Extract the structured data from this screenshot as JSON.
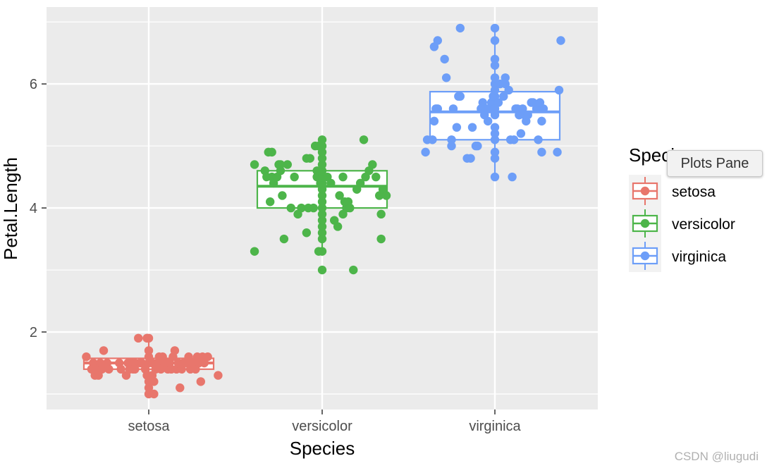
{
  "colors": {
    "panel_bg": "#ebebeb",
    "grid": "#ffffff",
    "tick": "#333333",
    "setosa": "#e8766c",
    "versicolor": "#4db54a",
    "virginica": "#6d9ef8"
  },
  "tooltip": {
    "text": "Plots Pane"
  },
  "watermark": {
    "text": "CSDN @liugudi"
  },
  "chart_data": {
    "type": "boxplot_jitter",
    "title": "",
    "xlabel": "Species",
    "ylabel": "Petal.Length",
    "categories": [
      "setosa",
      "versicolor",
      "virginica"
    ],
    "ylim": [
      0.75,
      7.24
    ],
    "yticks": [
      2,
      4,
      6
    ],
    "ytick_labels": [
      "2",
      "4",
      "6"
    ],
    "grid": true,
    "legend": {
      "title": "Species",
      "position": "right",
      "entries": [
        "setosa",
        "versicolor",
        "virginica"
      ]
    },
    "series": [
      {
        "name": "setosa",
        "box": {
          "q1": 1.4,
          "median": 1.5,
          "q3": 1.575,
          "whisker_low": 1.0,
          "whisker_high": 1.9
        },
        "points": [
          [
            -0.36,
            1.6
          ],
          [
            -0.33,
            1.4
          ],
          [
            -0.32,
            1.5
          ],
          [
            -0.32,
            1.4
          ],
          [
            -0.31,
            1.3
          ],
          [
            -0.32,
            1.5
          ],
          [
            -0.3,
            1.4
          ],
          [
            -0.29,
            1.3
          ],
          [
            -0.29,
            1.4
          ],
          [
            -0.28,
            1.4
          ],
          [
            -0.28,
            1.5
          ],
          [
            -0.27,
            1.4
          ],
          [
            -0.26,
            1.7
          ],
          [
            -0.24,
            1.5
          ],
          [
            -0.23,
            1.4
          ],
          [
            -0.17,
            1.5
          ],
          [
            -0.16,
            1.4
          ],
          [
            -0.13,
            1.3
          ],
          [
            -0.12,
            1.5
          ],
          [
            -0.11,
            1.4
          ],
          [
            -0.1,
            1.5
          ],
          [
            -0.09,
            1.4
          ],
          [
            -0.08,
            1.5
          ],
          [
            -0.08,
            1.4
          ],
          [
            -0.06,
            1.9
          ],
          [
            -0.05,
            1.5
          ],
          [
            -0.04,
            1.5
          ],
          [
            -0.02,
            1.4
          ],
          [
            -0.01,
            1.9
          ],
          [
            -0.01,
            1.3
          ],
          [
            0.0,
            1.0
          ],
          [
            0.0,
            1.1
          ],
          [
            0.0,
            1.2
          ],
          [
            0.0,
            1.5
          ],
          [
            0.0,
            1.6
          ],
          [
            0.0,
            1.7
          ],
          [
            0.0,
            1.9
          ],
          [
            0.02,
            1.3
          ],
          [
            0.02,
            1.5
          ],
          [
            0.03,
            1.0
          ],
          [
            0.03,
            1.2
          ],
          [
            0.04,
            1.4
          ],
          [
            0.05,
            1.5
          ],
          [
            0.06,
            1.6
          ],
          [
            0.07,
            1.4
          ],
          [
            0.08,
            1.6
          ],
          [
            0.09,
            1.5
          ],
          [
            0.1,
            1.5
          ],
          [
            0.11,
            1.4
          ],
          [
            0.12,
            1.5
          ],
          [
            0.13,
            1.4
          ],
          [
            0.14,
            1.6
          ],
          [
            0.15,
            1.7
          ],
          [
            0.16,
            1.4
          ],
          [
            0.17,
            1.5
          ],
          [
            0.18,
            1.1
          ],
          [
            0.19,
            1.4
          ],
          [
            0.2,
            1.5
          ],
          [
            0.22,
            1.5
          ],
          [
            0.23,
            1.6
          ],
          [
            0.24,
            1.4
          ],
          [
            0.26,
            1.5
          ],
          [
            0.27,
            1.4
          ],
          [
            0.28,
            1.6
          ],
          [
            0.29,
            1.5
          ],
          [
            0.3,
            1.2
          ],
          [
            0.31,
            1.6
          ],
          [
            0.32,
            1.5
          ],
          [
            0.34,
            1.6
          ],
          [
            0.4,
            1.3
          ]
        ]
      },
      {
        "name": "versicolor",
        "box": {
          "q1": 4.0,
          "median": 4.35,
          "q3": 4.6,
          "whisker_low": 3.3,
          "whisker_high": 5.1
        },
        "points": [
          [
            -0.39,
            4.7
          ],
          [
            -0.39,
            3.3
          ],
          [
            -0.33,
            4.6
          ],
          [
            -0.32,
            4.5
          ],
          [
            -0.31,
            4.9
          ],
          [
            -0.3,
            4.1
          ],
          [
            -0.29,
            4.9
          ],
          [
            -0.29,
            4.5
          ],
          [
            -0.28,
            4.4
          ],
          [
            -0.26,
            4.5
          ],
          [
            -0.25,
            4.7
          ],
          [
            -0.24,
            4.6
          ],
          [
            -0.24,
            4.7
          ],
          [
            -0.23,
            4.2
          ],
          [
            -0.22,
            3.5
          ],
          [
            -0.2,
            4.7
          ],
          [
            -0.18,
            4.0
          ],
          [
            -0.16,
            4.5
          ],
          [
            -0.14,
            3.9
          ],
          [
            -0.12,
            4.0
          ],
          [
            -0.09,
            3.6
          ],
          [
            -0.09,
            4.8
          ],
          [
            -0.08,
            4.0
          ],
          [
            -0.07,
            4.8
          ],
          [
            -0.05,
            4.0
          ],
          [
            -0.04,
            5.0
          ],
          [
            -0.03,
            4.6
          ],
          [
            -0.03,
            4.5
          ],
          [
            -0.02,
            3.3
          ],
          [
            -0.02,
            5.0
          ],
          [
            -0.01,
            4.4
          ],
          [
            0.0,
            3.0
          ],
          [
            0.0,
            3.3
          ],
          [
            0.0,
            3.5
          ],
          [
            0.0,
            3.6
          ],
          [
            0.0,
            3.7
          ],
          [
            0.0,
            3.8
          ],
          [
            0.0,
            3.9
          ],
          [
            0.0,
            4.0
          ],
          [
            0.0,
            4.1
          ],
          [
            0.0,
            4.2
          ],
          [
            0.0,
            4.3
          ],
          [
            0.0,
            4.4
          ],
          [
            0.0,
            4.5
          ],
          [
            0.0,
            4.6
          ],
          [
            0.0,
            4.7
          ],
          [
            0.0,
            4.8
          ],
          [
            0.0,
            4.9
          ],
          [
            0.0,
            5.0
          ],
          [
            0.0,
            5.1
          ],
          [
            0.03,
            4.5
          ],
          [
            0.05,
            4.4
          ],
          [
            0.07,
            3.8
          ],
          [
            0.09,
            3.7
          ],
          [
            0.1,
            4.2
          ],
          [
            0.12,
            3.9
          ],
          [
            0.12,
            4.5
          ],
          [
            0.13,
            4.1
          ],
          [
            0.14,
            4.0
          ],
          [
            0.15,
            4.1
          ],
          [
            0.16,
            4.0
          ],
          [
            0.18,
            3.0
          ],
          [
            0.2,
            4.3
          ],
          [
            0.22,
            4.4
          ],
          [
            0.24,
            5.1
          ],
          [
            0.25,
            4.5
          ],
          [
            0.27,
            4.6
          ],
          [
            0.29,
            4.7
          ],
          [
            0.31,
            4.5
          ],
          [
            0.33,
            4.2
          ],
          [
            0.34,
            3.9
          ],
          [
            0.34,
            3.5
          ],
          [
            0.35,
            4.3
          ],
          [
            0.37,
            4.2
          ]
        ]
      },
      {
        "name": "virginica",
        "box": {
          "q1": 5.1,
          "median": 5.55,
          "q3": 5.875,
          "whisker_low": 4.5,
          "whisker_high": 6.9
        },
        "points": [
          [
            -0.4,
            4.9
          ],
          [
            -0.39,
            5.1
          ],
          [
            -0.36,
            5.1
          ],
          [
            -0.35,
            5.4
          ],
          [
            -0.35,
            6.6
          ],
          [
            -0.34,
            5.6
          ],
          [
            -0.33,
            6.7
          ],
          [
            -0.33,
            5.6
          ],
          [
            -0.29,
            6.4
          ],
          [
            -0.28,
            6.1
          ],
          [
            -0.25,
            5.1
          ],
          [
            -0.25,
            5.0
          ],
          [
            -0.24,
            5.6
          ],
          [
            -0.22,
            5.3
          ],
          [
            -0.21,
            5.8
          ],
          [
            -0.2,
            5.8
          ],
          [
            -0.2,
            6.9
          ],
          [
            -0.16,
            4.8
          ],
          [
            -0.14,
            4.8
          ],
          [
            -0.13,
            5.3
          ],
          [
            -0.11,
            5.0
          ],
          [
            -0.1,
            5.0
          ],
          [
            -0.08,
            5.6
          ],
          [
            -0.07,
            5.7
          ],
          [
            -0.06,
            5.5
          ],
          [
            -0.05,
            5.6
          ],
          [
            -0.04,
            5.4
          ],
          [
            -0.03,
            5.6
          ],
          [
            -0.02,
            5.7
          ],
          [
            -0.01,
            5.8
          ],
          [
            0.0,
            4.5
          ],
          [
            0.0,
            4.8
          ],
          [
            0.0,
            4.9
          ],
          [
            0.0,
            5.1
          ],
          [
            0.0,
            5.2
          ],
          [
            0.0,
            5.3
          ],
          [
            0.0,
            5.5
          ],
          [
            0.0,
            5.6
          ],
          [
            0.0,
            5.8
          ],
          [
            0.0,
            5.9
          ],
          [
            0.0,
            6.0
          ],
          [
            0.0,
            6.1
          ],
          [
            0.0,
            6.3
          ],
          [
            0.0,
            6.4
          ],
          [
            0.0,
            6.7
          ],
          [
            0.0,
            6.9
          ],
          [
            0.02,
            5.7
          ],
          [
            0.03,
            6.0
          ],
          [
            0.05,
            5.8
          ],
          [
            0.06,
            6.1
          ],
          [
            0.06,
            6.0
          ],
          [
            0.08,
            5.9
          ],
          [
            0.09,
            5.1
          ],
          [
            0.1,
            4.5
          ],
          [
            0.11,
            5.1
          ],
          [
            0.12,
            5.6
          ],
          [
            0.13,
            5.6
          ],
          [
            0.14,
            5.5
          ],
          [
            0.14,
            5.5
          ],
          [
            0.15,
            5.2
          ],
          [
            0.16,
            5.6
          ],
          [
            0.17,
            5.5
          ],
          [
            0.18,
            5.4
          ],
          [
            0.19,
            5.5
          ],
          [
            0.21,
            5.7
          ],
          [
            0.22,
            5.7
          ],
          [
            0.24,
            5.6
          ],
          [
            0.25,
            5.1
          ],
          [
            0.26,
            5.7
          ],
          [
            0.27,
            4.9
          ],
          [
            0.27,
            5.4
          ],
          [
            0.28,
            5.6
          ],
          [
            0.36,
            4.9
          ],
          [
            0.37,
            5.9
          ],
          [
            0.38,
            6.7
          ]
        ]
      }
    ]
  }
}
